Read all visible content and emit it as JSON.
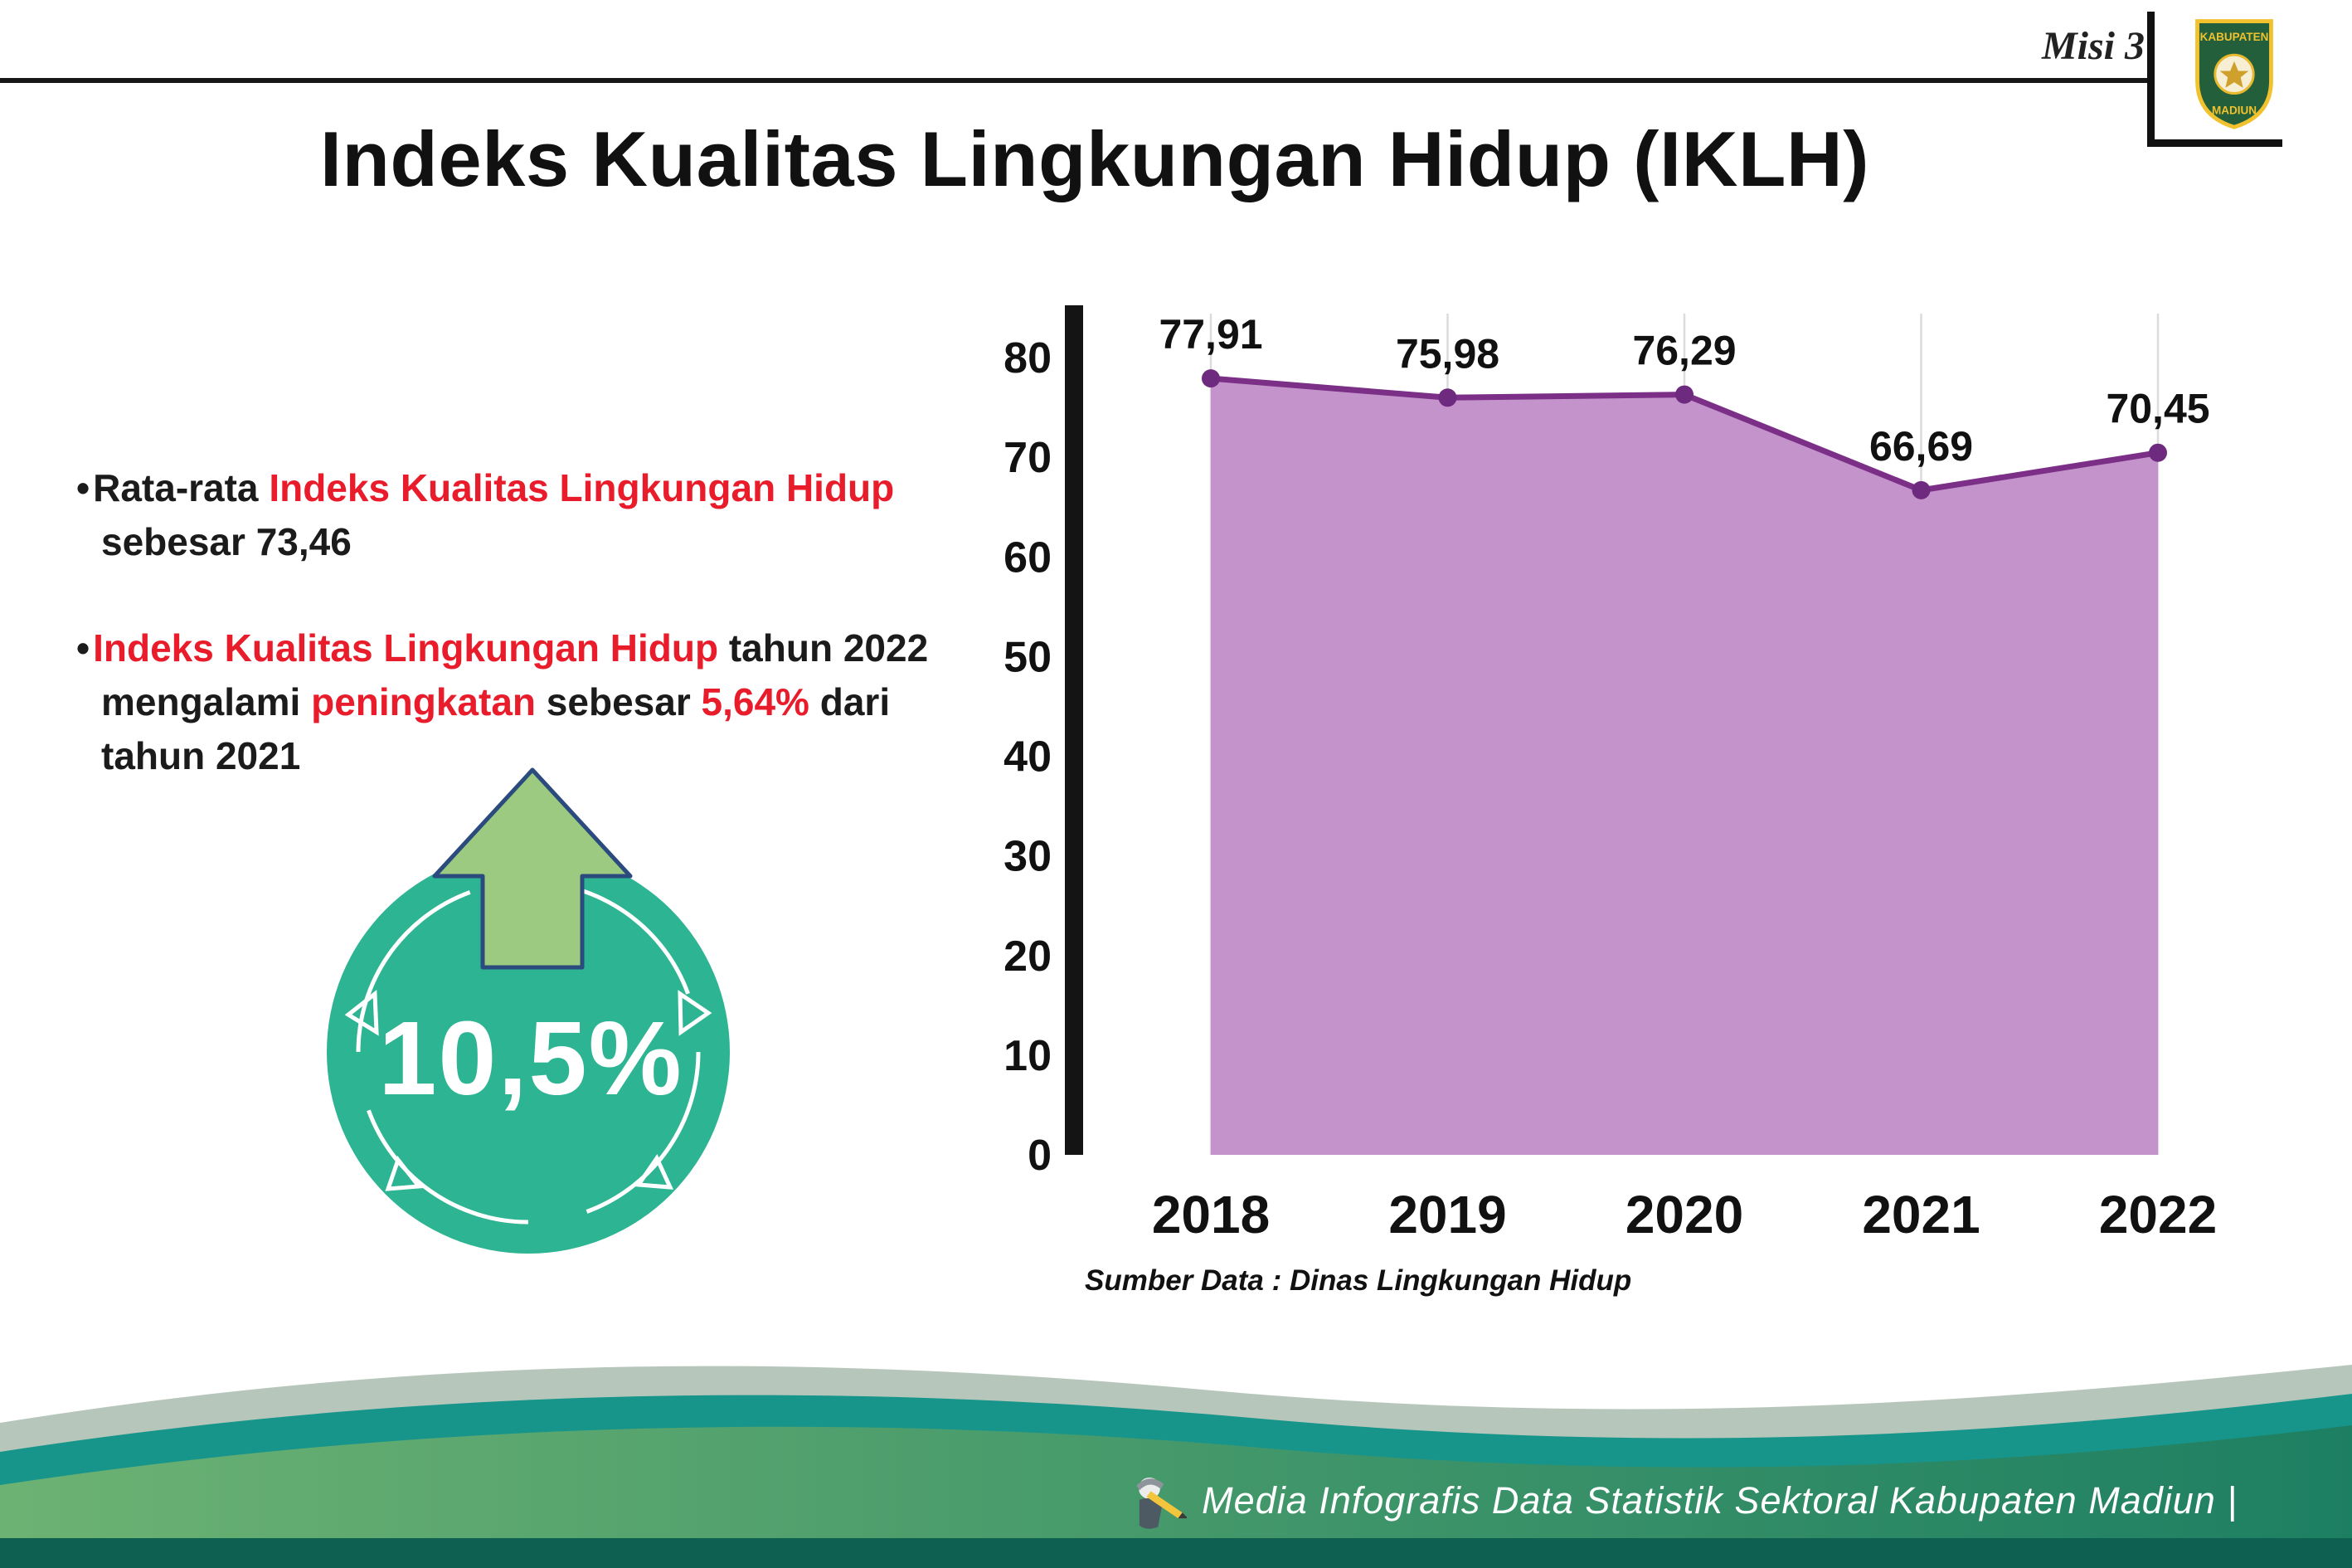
{
  "header": {
    "misi_label": "Misi 3",
    "title": "Indeks Kualitas Lingkungan Hidup (IKLH)",
    "logo_text_top": "KABUPATEN",
    "logo_text_bottom": "MADIUN"
  },
  "bullets": {
    "b1": {
      "s1": "Rata-rata ",
      "s2": "Indeks Kualitas Lingkungan Hidup",
      "s3": " sebesar 73,46"
    },
    "b2": {
      "s1": "Indeks Kualitas Lingkungan Hidup",
      "s2": " tahun 2022 mengalami ",
      "s3": "peningkatan",
      "s4": " sebesar ",
      "s5": "5,64%",
      "s6": " dari tahun 2021"
    }
  },
  "badge": {
    "value": "10,5%"
  },
  "chart_data": {
    "type": "area",
    "title": "Indeks Kualitas Lingkungan Hidup (IKLH)",
    "categories": [
      "2018",
      "2019",
      "2020",
      "2021",
      "2022"
    ],
    "values": [
      77.91,
      75.98,
      76.29,
      66.69,
      70.45
    ],
    "point_labels": [
      "77,91",
      "75,98",
      "76,29",
      "66,69",
      "70,45"
    ],
    "ylim": [
      0,
      80
    ],
    "ytick_step": 10,
    "yticks": [
      "0",
      "10",
      "20",
      "30",
      "40",
      "50",
      "60",
      "70",
      "80"
    ],
    "grid": "vertical-light",
    "legend": "none",
    "source": "Sumber Data : Dinas Lingkungan Hidup",
    "colors": {
      "area": "#c493cc",
      "line": "#7b2f87",
      "point": "#6e2a7e",
      "axis": "#141414",
      "gridline": "#dcdcdc"
    }
  },
  "footer": {
    "credit": "Media Infografis Data Statistik Sektoral Kabupaten Madiun |"
  },
  "colors": {
    "accent_red": "#e81c2a",
    "badge_teal": "#2db492",
    "arrow_green": "#9cca80",
    "footer_sage": "#b7c6bb",
    "footer_teal": "#17958b",
    "footer_green_dark": "#0e6051"
  }
}
